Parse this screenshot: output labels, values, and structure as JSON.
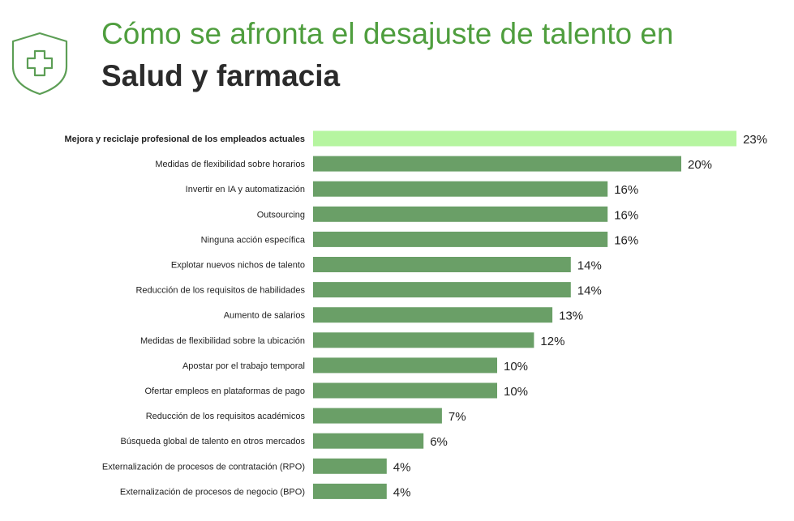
{
  "header": {
    "icon": "medical-cross-shield-icon",
    "title_line1": "Cómo se afronta el desajuste de talento en",
    "title_line2": "Salud y farmacia"
  },
  "colors": {
    "accent_green": "#4f9e3e",
    "bar": "#6a9f67",
    "bar_highlight": "#b6f5a0",
    "title_dark": "#2b2b2b"
  },
  "chart_data": {
    "type": "bar",
    "orientation": "horizontal",
    "value_suffix": "%",
    "highlight_index": 0,
    "categories": [
      "Mejora y reciclaje profesional de los empleados actuales",
      "Medidas de flexibilidad sobre horarios",
      "Invertir en IA y automatización",
      "Outsourcing",
      "Ninguna acción específica",
      "Explotar nuevos nichos de talento",
      "Reducción de los requisitos de habilidades",
      "Aumento de salarios",
      "Medidas de flexibilidad sobre la ubicación",
      "Apostar por el trabajo temporal",
      "Ofertar empleos en plataformas de pago",
      "Reducción de los requisitos académicos",
      "Búsqueda global de talento en otros mercados",
      "Externalización de procesos de contratación (RPO)",
      "Externalización de procesos de negocio (BPO)"
    ],
    "values": [
      23,
      20,
      16,
      16,
      16,
      14,
      14,
      13,
      12,
      10,
      10,
      7,
      6,
      4,
      4
    ],
    "xlim": [
      0,
      23
    ],
    "grid": false,
    "legend": "none"
  }
}
